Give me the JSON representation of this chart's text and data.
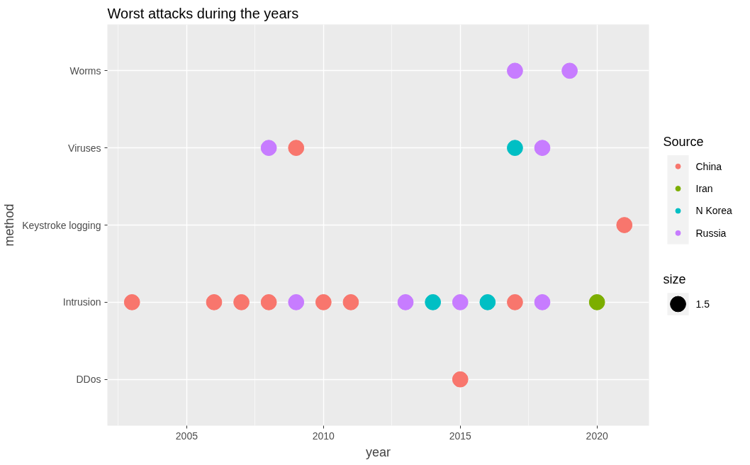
{
  "chart_data": {
    "type": "scatter",
    "orientation": "horizontal",
    "title": "Worst attacks during the years",
    "xlabel": "year",
    "ylabel": "method",
    "legend_title": "Source",
    "categories": [
      "Worms",
      "Viruses",
      "Keystroke logging",
      "Intrusion",
      "DDos"
    ],
    "series": [
      {
        "name": "China",
        "color": "#f8766d",
        "values": [
          null,
          2009,
          2021,
          2003,
          2015
        ],
        "sizes": [
          null,
          1.5,
          1.5,
          1.5,
          1.5
        ]
      },
      {
        "color": "#f8766d",
        "values": [
          null,
          null,
          null,
          2006,
          null
        ],
        "sizes": [
          null,
          null,
          null,
          1.5,
          null
        ]
      },
      {
        "color": "#f8766d",
        "values": [
          null,
          null,
          null,
          2007,
          null
        ],
        "sizes": [
          null,
          null,
          null,
          1.5,
          null
        ]
      },
      {
        "color": "#f8766d",
        "values": [
          null,
          null,
          null,
          2008,
          null
        ],
        "sizes": [
          null,
          null,
          null,
          1.5,
          null
        ]
      },
      {
        "color": "#f8766d",
        "values": [
          null,
          null,
          null,
          2010,
          null
        ],
        "sizes": [
          null,
          null,
          null,
          1.5,
          null
        ]
      },
      {
        "color": "#f8766d",
        "values": [
          null,
          null,
          null,
          2011,
          null
        ],
        "sizes": [
          null,
          null,
          null,
          1.5,
          null
        ]
      },
      {
        "color": "#f8766d",
        "values": [
          null,
          null,
          null,
          2017,
          null
        ],
        "sizes": [
          null,
          null,
          null,
          1.5,
          null
        ]
      },
      {
        "name": "Iran",
        "color": "#7cae00",
        "values": [
          null,
          null,
          null,
          2020,
          null
        ],
        "sizes": [
          null,
          null,
          null,
          1.5,
          null
        ]
      },
      {
        "name": "N Korea",
        "color": "#00bfc4",
        "values": [
          null,
          2017,
          null,
          2014,
          null
        ],
        "sizes": [
          null,
          1.5,
          null,
          1.5,
          null
        ]
      },
      {
        "color": "#00bfc4",
        "values": [
          null,
          null,
          null,
          2016,
          null
        ],
        "sizes": [
          null,
          null,
          null,
          1.5,
          null
        ]
      },
      {
        "name": "Russia",
        "color": "#c77cff",
        "values": [
          2017,
          2008,
          null,
          2009,
          null
        ],
        "sizes": [
          1.5,
          1.5,
          null,
          1.5,
          null
        ]
      },
      {
        "color": "#c77cff",
        "values": [
          2019,
          2018,
          null,
          2013,
          null
        ],
        "sizes": [
          1.5,
          1.5,
          null,
          1.5,
          null
        ]
      },
      {
        "color": "#c77cff",
        "values": [
          null,
          null,
          null,
          2015,
          null
        ],
        "sizes": [
          null,
          null,
          null,
          1.5,
          null
        ]
      },
      {
        "color": "#c77cff",
        "values": [
          null,
          null,
          null,
          2018,
          null
        ],
        "sizes": [
          null,
          null,
          null,
          1.5,
          null
        ]
      }
    ],
    "size_legend": [
      1.5
    ],
    "annotations": [
      "size"
    ],
    "xlim": [
      2002.1,
      2021.9
    ],
    "xticks": [
      2005,
      2010,
      2015,
      2020
    ],
    "grid": true,
    "legend": "right",
    "marker": "circle"
  }
}
